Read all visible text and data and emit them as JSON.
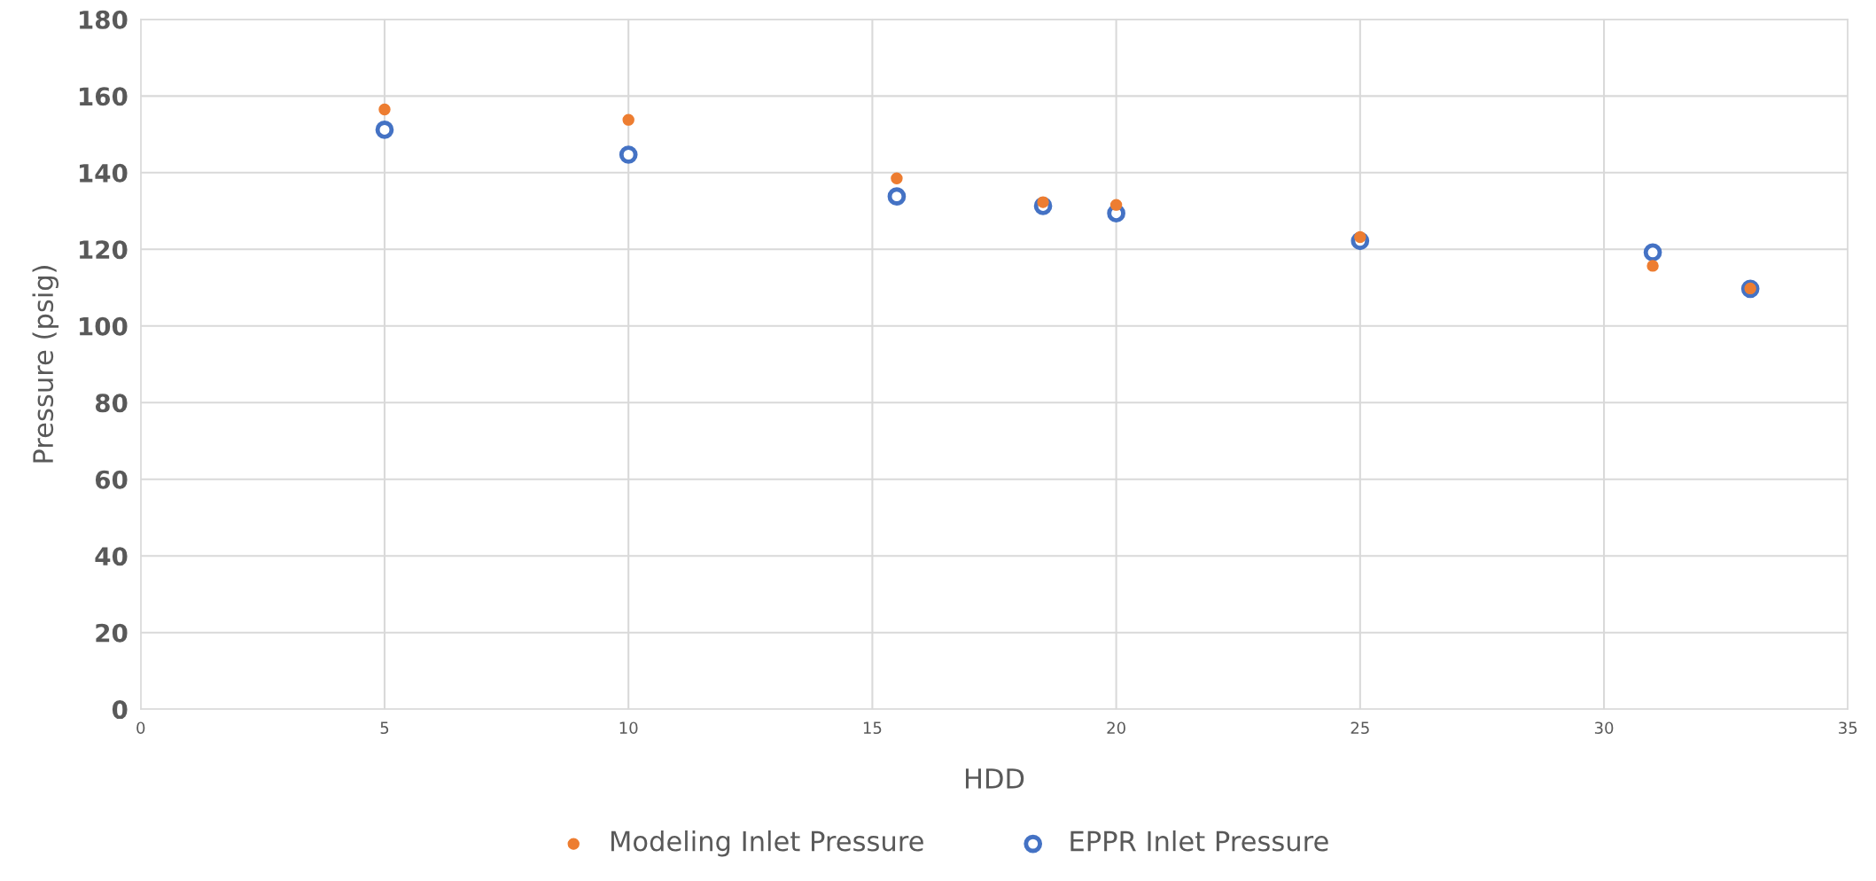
{
  "chart_data": {
    "type": "scatter",
    "xlabel": "HDD",
    "ylabel": "Pressure (psig)",
    "x": [
      5,
      10,
      15.5,
      18.5,
      20,
      25,
      31,
      33
    ],
    "series": [
      {
        "name": "Modeling Inlet Pressure",
        "color": "#ed7d31",
        "values": [
          156.5,
          153.8,
          138.5,
          132.3,
          131.6,
          123.2,
          115.7,
          109.8
        ]
      },
      {
        "name": "EPPR Inlet Pressure",
        "color": "#4472c4",
        "values": [
          151.2,
          144.7,
          133.8,
          131.3,
          129.4,
          122.2,
          119.2,
          109.7
        ]
      }
    ],
    "xlim": [
      0,
      35
    ],
    "xticks": [
      0,
      5,
      10,
      15,
      20,
      25,
      30,
      35
    ],
    "ylim": [
      0,
      180
    ],
    "yticks": [
      0,
      20,
      40,
      60,
      80,
      100,
      120,
      140,
      160,
      180
    ],
    "grid": true,
    "legend": "bottom",
    "marker": "circle"
  }
}
